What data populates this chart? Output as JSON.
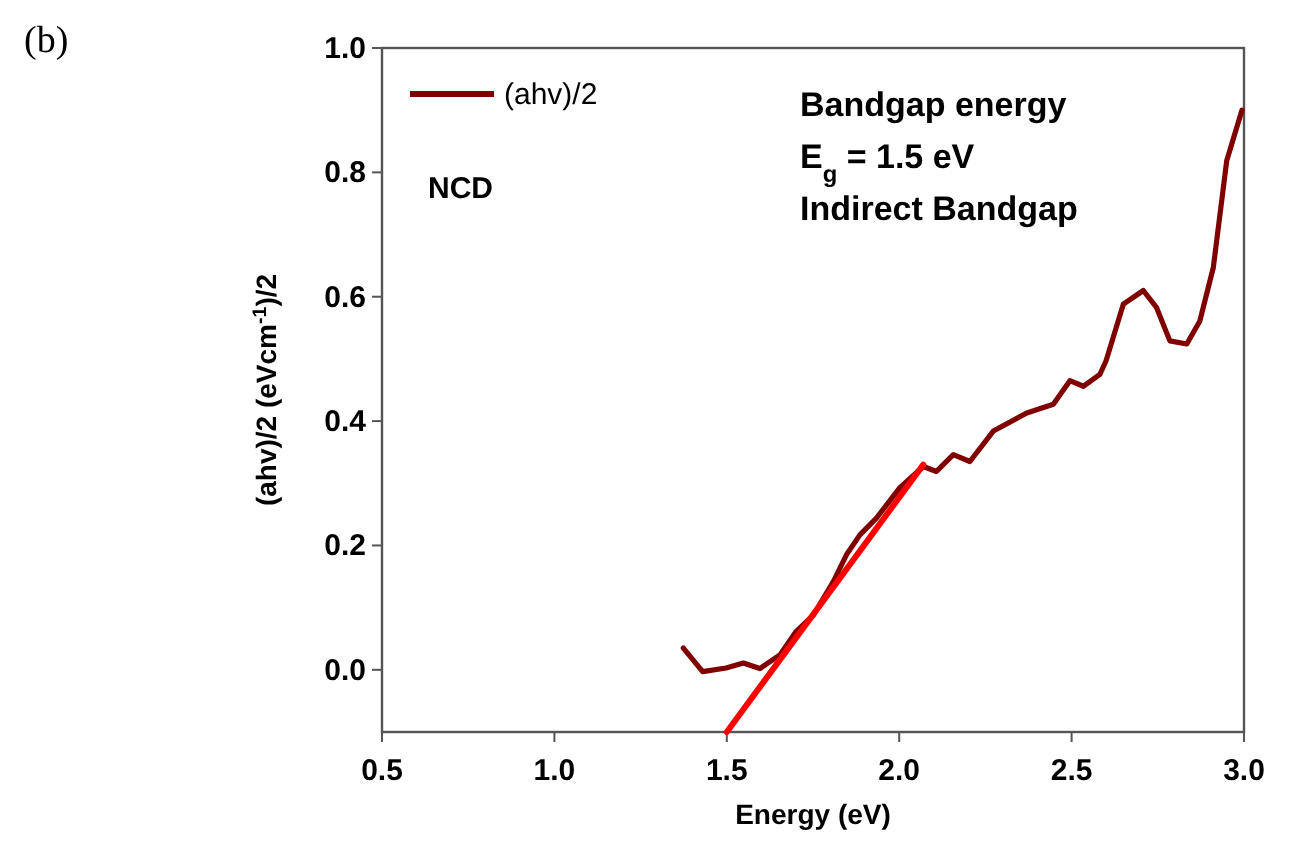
{
  "chart_data": {
    "type": "line",
    "xlabel": "Energy (eV)",
    "ylabel": "(ahv)/2 (eVcm$^{-1}$)/2",
    "xlim": [
      0.5,
      3.0
    ],
    "ylim": [
      -0.1,
      1.0
    ],
    "xticks": [
      {
        "value": 0.5,
        "label": "0.5"
      },
      {
        "value": 1.0,
        "label": "1.0"
      },
      {
        "value": 1.5,
        "label": "1.5"
      },
      {
        "value": 2.0,
        "label": "2.0"
      },
      {
        "value": 2.5,
        "label": "2.5"
      },
      {
        "value": 3.0,
        "label": "3.0"
      }
    ],
    "yticks": [
      {
        "value": 0,
        "label": "0.0"
      },
      {
        "value": 0.2,
        "label": "0.2"
      },
      {
        "value": 0.4,
        "label": "0.4"
      },
      {
        "value": 0.6,
        "label": "0.6"
      },
      {
        "value": 0.8,
        "label": "0.8"
      },
      {
        "value": 1.0,
        "label": "1.0"
      }
    ],
    "grid": false,
    "legend": "top left",
    "line_style": "solid",
    "series": [
      {
        "name": "(ahv)/2",
        "color": "#800000",
        "x": [
          1.374,
          1.43,
          1.498,
          1.548,
          1.596,
          1.654,
          1.7,
          1.751,
          1.809,
          1.847,
          1.886,
          1.934,
          2.002,
          2.07,
          2.108,
          2.157,
          2.205,
          2.273,
          2.37,
          2.447,
          2.495,
          2.534,
          2.582,
          2.6,
          2.65,
          2.708,
          2.746,
          2.785,
          2.834,
          2.872,
          2.911,
          2.95,
          2.994
        ],
        "values": [
          0.035,
          -0.003,
          0.003,
          0.011,
          0.002,
          0.024,
          0.061,
          0.088,
          0.142,
          0.185,
          0.217,
          0.244,
          0.293,
          0.327,
          0.319,
          0.346,
          0.335,
          0.384,
          0.413,
          0.427,
          0.465,
          0.456,
          0.475,
          0.497,
          0.588,
          0.61,
          0.583,
          0.529,
          0.524,
          0.561,
          0.647,
          0.819,
          0.9
        ]
      },
      {
        "color": "#ff0000",
        "x": [
          1.5,
          2.07
        ],
        "values": [
          -0.1,
          0.33
        ]
      }
    ],
    "annotations": [
      "(b)",
      "NCD",
      "Bandgap energy",
      "E$_{g}$ = 1.5 eV",
      "Indirect Bandgap"
    ]
  }
}
